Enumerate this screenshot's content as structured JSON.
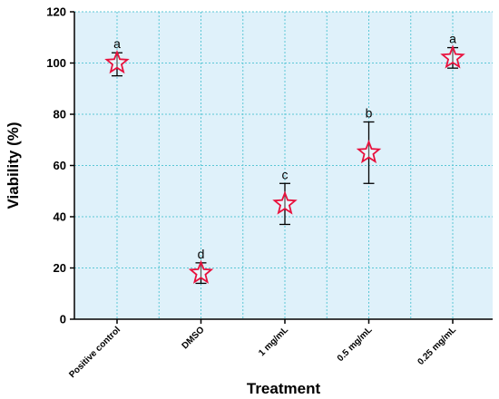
{
  "chart_data": {
    "type": "scatter",
    "title": "",
    "xlabel": "Treatment",
    "ylabel": "Viability (%)",
    "ylim": [
      0,
      120
    ],
    "yticks": [
      0,
      20,
      40,
      60,
      80,
      100,
      120
    ],
    "grid": true,
    "legend": "none",
    "categories": [
      "Positive control",
      "DMSO",
      "1 mg/mL",
      "0.5 mg/mL",
      "0.25 mg/mL"
    ],
    "values": [
      100,
      18,
      45,
      65,
      102
    ],
    "error_low": [
      95,
      14,
      37,
      53,
      98
    ],
    "error_high": [
      104,
      22,
      53,
      77,
      106
    ],
    "annotations": [
      "a",
      "d",
      "c",
      "b",
      "a"
    ],
    "colors": {
      "plot_background": "#dff1fa",
      "grid": "#5bc7d6",
      "marker_edge": "#e8103c",
      "marker_fill": "#ffffff",
      "axis": "#000000"
    },
    "marker": "star-icon"
  }
}
